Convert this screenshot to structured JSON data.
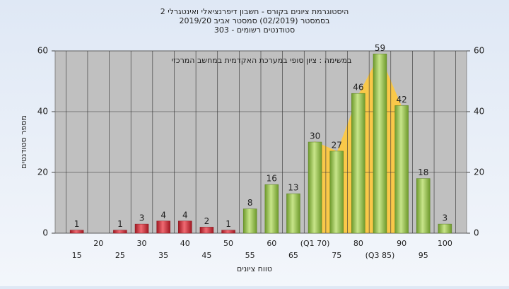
{
  "chart_data": {
    "type": "bar",
    "title": "היסטוגרמת ציונים בקורס - חשבון דיפרנציאלי ואינטגרלי 2",
    "subtitle": "בסמסטר  (02/2019)  סמסטר אביב 2019/20",
    "subtitle2": "סטודנטים רשומים - 303",
    "annotation": "במשימה : ציון סופי במערכת האקדמית במחשב המרכזי",
    "x_label": "טווח ציונים",
    "y_label": "מספר סטודנטים",
    "categories": [
      "15",
      "20",
      "25",
      "30",
      "35",
      "40",
      "45",
      "50",
      "55",
      "60",
      "65",
      "(Q1 70)",
      "75",
      "80",
      "(Q3 85)",
      "90",
      "95",
      "100"
    ],
    "values": [
      1,
      0,
      1,
      3,
      4,
      4,
      2,
      1,
      8,
      16,
      13,
      30,
      27,
      46,
      59,
      42,
      18,
      3
    ],
    "colors": {
      "low": "#d9333f",
      "high": "#94c24a"
    },
    "ylim": [
      0,
      60
    ],
    "yticks": [
      0,
      20,
      40,
      60
    ],
    "y2lim": [
      0,
      60
    ],
    "y2ticks": [
      0,
      20,
      40,
      60
    ],
    "grid": true
  }
}
